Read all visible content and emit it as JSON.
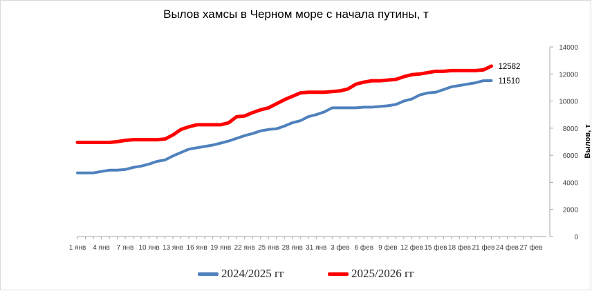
{
  "chart_data": {
    "type": "line",
    "title": "Вылов хамсы в Черном море с начала путины, т",
    "xlabel": "",
    "ylabel": "Вылов, т",
    "ylim": [
      0,
      14000
    ],
    "yticks": [
      0,
      2000,
      4000,
      6000,
      8000,
      10000,
      12000,
      14000
    ],
    "x_ticks": [
      "1 янв",
      "4 янв",
      "7 янв",
      "10 янв",
      "13 янв",
      "16 янв",
      "19 янв",
      "22 янв",
      "25 янв",
      "28 янв",
      "31 янв",
      "3 фев",
      "6 фев",
      "9 фев",
      "12 фев",
      "15 фев",
      "18 фев",
      "21 фев",
      "24 фев",
      "27 фев"
    ],
    "x_day_range": [
      1,
      58
    ],
    "series": [
      {
        "name": "2024/2025 гг",
        "color": "#4f81bd",
        "end_label": "11510",
        "x": [
          1,
          2,
          3,
          4,
          5,
          6,
          7,
          8,
          9,
          10,
          11,
          12,
          13,
          14,
          15,
          16,
          17,
          18,
          19,
          20,
          21,
          22,
          23,
          24,
          25,
          26,
          27,
          28,
          29,
          30,
          31,
          32,
          33,
          34,
          35,
          36,
          37,
          38,
          39,
          40,
          41,
          42,
          43,
          44,
          45,
          46,
          47,
          48,
          49,
          50,
          51,
          52,
          53
        ],
        "values": [
          4700,
          4700,
          4700,
          4800,
          4900,
          4900,
          4950,
          5100,
          5200,
          5350,
          5550,
          5650,
          5950,
          6200,
          6450,
          6550,
          6650,
          6750,
          6900,
          7050,
          7250,
          7450,
          7600,
          7800,
          7900,
          7950,
          8150,
          8400,
          8550,
          8850,
          9000,
          9200,
          9500,
          9500,
          9500,
          9500,
          9550,
          9550,
          9600,
          9650,
          9750,
          10000,
          10150,
          10450,
          10600,
          10650,
          10850,
          11050,
          11150,
          11250,
          11350,
          11500,
          11510
        ]
      },
      {
        "name": "2025/2026 гг",
        "color": "#ff0000",
        "end_label": "12582",
        "x": [
          1,
          2,
          3,
          4,
          5,
          6,
          7,
          8,
          9,
          10,
          11,
          12,
          13,
          14,
          15,
          16,
          17,
          18,
          19,
          20,
          21,
          22,
          23,
          24,
          25,
          26,
          27,
          28,
          29,
          30,
          31,
          32,
          33,
          34,
          35,
          36,
          37,
          38,
          39,
          40,
          41,
          42,
          43,
          44,
          45,
          46,
          47,
          48,
          49,
          50,
          51,
          52,
          53
        ],
        "values": [
          6950,
          6950,
          6950,
          6950,
          6950,
          7000,
          7100,
          7150,
          7150,
          7150,
          7150,
          7200,
          7500,
          7900,
          8100,
          8250,
          8250,
          8250,
          8250,
          8400,
          8850,
          8900,
          9150,
          9350,
          9500,
          9800,
          10100,
          10350,
          10600,
          10650,
          10650,
          10650,
          10700,
          10750,
          10900,
          11250,
          11400,
          11500,
          11500,
          11550,
          11600,
          11800,
          11950,
          12000,
          12100,
          12200,
          12200,
          12250,
          12250,
          12250,
          12250,
          12300,
          12582
        ]
      }
    ],
    "legend_position": "bottom"
  }
}
